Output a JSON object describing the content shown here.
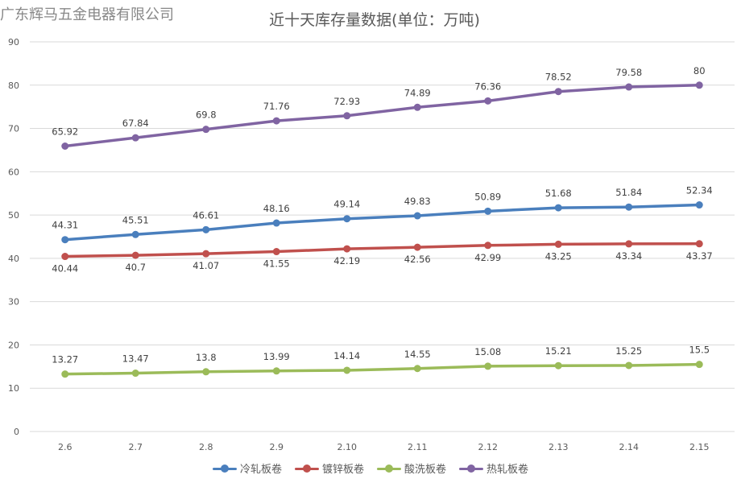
{
  "watermark": "广东辉马五金电器有限公司",
  "chart_data": {
    "type": "line",
    "title": "近十天库存量数据(单位：万吨)",
    "xlabel": "",
    "ylabel": "",
    "categories": [
      "2.6",
      "2.7",
      "2.8",
      "2.9",
      "2.10",
      "2.11",
      "2.12",
      "2.13",
      "2.14",
      "2.15"
    ],
    "ylim": [
      0,
      90
    ],
    "yticks": [
      0,
      10,
      20,
      30,
      40,
      50,
      60,
      70,
      80,
      90
    ],
    "grid": true,
    "legend_position": "bottom",
    "series": [
      {
        "name": "冷轧板卷",
        "color": "#4a7fbd",
        "label_pos": "above",
        "values": [
          44.31,
          45.51,
          46.61,
          48.16,
          49.14,
          49.83,
          50.89,
          51.68,
          51.84,
          52.34
        ]
      },
      {
        "name": "镀锌板卷",
        "color": "#c0504d",
        "label_pos": "below",
        "values": [
          40.44,
          40.7,
          41.07,
          41.55,
          42.19,
          42.56,
          42.99,
          43.25,
          43.34,
          43.37
        ]
      },
      {
        "name": "酸洗板卷",
        "color": "#9bbb59",
        "label_pos": "above",
        "values": [
          13.27,
          13.47,
          13.8,
          13.99,
          14.14,
          14.55,
          15.08,
          15.21,
          15.25,
          15.5
        ]
      },
      {
        "name": "热轧板卷",
        "color": "#8064a2",
        "label_pos": "above",
        "values": [
          65.92,
          67.84,
          69.8,
          71.76,
          72.93,
          74.89,
          76.36,
          78.52,
          79.58,
          80
        ]
      }
    ]
  }
}
